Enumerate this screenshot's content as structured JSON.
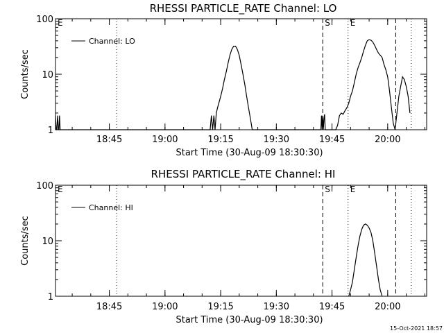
{
  "footer": {
    "timestamp": "15-Oct-2021 18:57"
  },
  "chart_data": [
    {
      "type": "line",
      "title": "RHESSI PARTICLE_RATE Channel: LO",
      "xlabel": "Start Time (30-Aug-09 18:30:30)",
      "ylabel": "Counts/sec",
      "yscale": "log",
      "ylim": [
        1,
        100
      ],
      "xlim": [
        "18:30:30",
        "20:10:30"
      ],
      "x_ticks": [
        "18:45",
        "19:00",
        "19:15",
        "19:30",
        "19:45",
        "20:00"
      ],
      "y_ticks": [
        "1",
        "10",
        "100"
      ],
      "legend": {
        "entries": [
          "Channel: LO"
        ],
        "placement": "top-left"
      },
      "markers": [
        {
          "label": "E",
          "time": "18:30:30",
          "style": "none"
        },
        {
          "label": "",
          "time": "18:47:00",
          "style": "dotted"
        },
        {
          "label": "S",
          "time": "19:42:30",
          "style": "dashed"
        },
        {
          "label": "E",
          "time": "19:49:20",
          "style": "dotted"
        },
        {
          "label": "",
          "time": "20:02:10",
          "style": "dashed"
        },
        {
          "label": "",
          "time": "20:06:20",
          "style": "dotted"
        }
      ],
      "series": [
        {
          "name": "Channel: LO",
          "x": [
            "18:30:30",
            "18:30:40",
            "18:30:50",
            "18:31:05",
            "18:31:15",
            "18:31:25",
            "18:31:35",
            "18:31:45",
            "19:12:10",
            "19:12:30",
            "19:12:50",
            "19:13:10",
            "19:13:30",
            "19:13:50",
            "19:14:10",
            "19:14:30",
            "19:15:00",
            "19:15:30",
            "19:16:00",
            "19:16:30",
            "19:17:00",
            "19:17:30",
            "19:18:00",
            "19:18:30",
            "19:19:00",
            "19:19:30",
            "19:20:00",
            "19:20:30",
            "19:21:00",
            "19:21:30",
            "19:22:00",
            "19:22:30",
            "19:23:00",
            "19:23:30",
            "19:24:00",
            "19:24:30",
            "19:25:00",
            "19:25:30",
            "19:26:00",
            "19:26:30",
            "19:42:00",
            "19:42:10",
            "19:42:20",
            "19:42:30",
            "19:42:40",
            "19:42:50",
            "19:43:00",
            "19:43:10",
            "19:46:00",
            "19:46:30",
            "19:47:00",
            "19:47:30",
            "19:48:00",
            "19:48:30",
            "19:49:00",
            "19:49:30",
            "19:50:00",
            "19:50:30",
            "19:51:00",
            "19:51:30",
            "19:52:00",
            "19:52:30",
            "19:53:00",
            "19:53:30",
            "19:54:00",
            "19:54:30",
            "19:55:00",
            "19:55:30",
            "19:56:00",
            "19:56:30",
            "19:57:00",
            "19:57:30",
            "19:58:00",
            "19:58:30",
            "19:59:00",
            "19:59:30",
            "20:00:00",
            "20:00:30",
            "20:01:00",
            "20:01:30",
            "20:02:00",
            "20:03:00",
            "20:03:30",
            "20:04:00",
            "20:04:30",
            "20:05:00",
            "20:05:30",
            "20:06:00"
          ],
          "y": [
            1.8,
            1,
            1,
            1.8,
            1,
            1,
            1.8,
            1,
            1,
            1.8,
            1,
            1.8,
            1,
            2,
            2.5,
            3,
            4,
            5.5,
            8,
            11,
            16,
            22,
            28,
            32,
            32,
            28,
            22,
            15,
            10,
            6.5,
            4,
            2.5,
            1.6,
            1,
            1,
            1,
            1,
            1,
            1,
            1,
            1,
            1.8,
            1,
            1.8,
            1,
            1.6,
            1.9,
            1,
            1,
            1.2,
            1.8,
            2,
            1.9,
            2.2,
            2.5,
            3,
            4,
            5,
            7,
            10,
            13,
            16,
            20,
            26,
            33,
            40,
            42,
            41,
            38,
            33,
            28,
            24,
            22,
            20,
            15,
            12,
            9,
            5,
            2.5,
            1.3,
            1,
            4,
            6,
            9,
            8,
            6,
            4,
            2
          ]
        }
      ]
    },
    {
      "type": "line",
      "title": "RHESSI PARTICLE_RATE Channel: HI",
      "xlabel": "Start Time (30-Aug-09 18:30:30)",
      "ylabel": "Counts/sec",
      "yscale": "log",
      "ylim": [
        1,
        100
      ],
      "xlim": [
        "18:30:30",
        "20:10:30"
      ],
      "x_ticks": [
        "18:45",
        "19:00",
        "19:15",
        "19:30",
        "19:45",
        "20:00"
      ],
      "y_ticks": [
        "1",
        "10",
        "100"
      ],
      "legend": {
        "entries": [
          "Channel: HI"
        ],
        "placement": "top-left"
      },
      "markers": [
        {
          "label": "E",
          "time": "18:30:30",
          "style": "none"
        },
        {
          "label": "",
          "time": "18:47:00",
          "style": "dotted"
        },
        {
          "label": "S",
          "time": "19:42:30",
          "style": "dashed"
        },
        {
          "label": "E",
          "time": "19:49:20",
          "style": "dotted"
        },
        {
          "label": "",
          "time": "20:02:10",
          "style": "dashed"
        },
        {
          "label": "",
          "time": "20:06:20",
          "style": "dotted"
        }
      ],
      "series": [
        {
          "name": "Channel: HI",
          "x": [
            "19:49:30",
            "19:50:00",
            "19:50:30",
            "19:51:00",
            "19:51:30",
            "19:52:00",
            "19:52:30",
            "19:53:00",
            "19:53:30",
            "19:54:00",
            "19:54:30",
            "19:55:00",
            "19:55:30",
            "19:56:00",
            "19:56:30",
            "19:57:00",
            "19:57:30",
            "19:58:00",
            "19:58:30"
          ],
          "y": [
            1,
            1.3,
            1.8,
            3,
            5,
            8,
            12,
            16,
            19,
            20,
            19,
            17,
            14,
            10,
            6,
            3.5,
            2,
            1.3,
            1
          ]
        }
      ]
    }
  ]
}
